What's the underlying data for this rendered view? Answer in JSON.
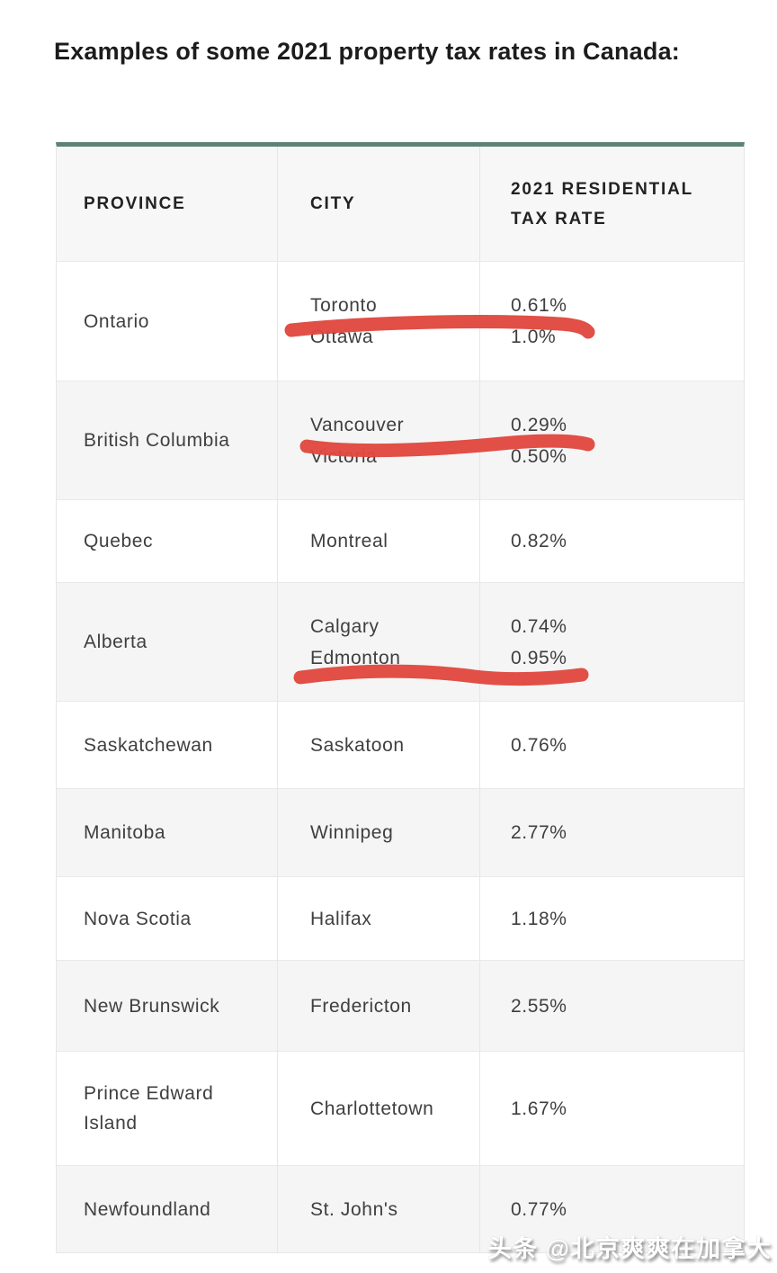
{
  "title": "Examples of some 2021 property tax rates in Canada:",
  "table": {
    "columns": [
      "PROVINCE",
      "CITY",
      "2021 RESIDENTIAL TAX RATE"
    ],
    "rows": [
      {
        "province": "Ontario",
        "cities": [
          "Toronto",
          "Ottawa"
        ],
        "rates": [
          "0.61%",
          "1.0%"
        ]
      },
      {
        "province": "British Columbia",
        "cities": [
          "Vancouver",
          "Victoria"
        ],
        "rates": [
          "0.29%",
          "0.50%"
        ]
      },
      {
        "province": "Quebec",
        "cities": [
          "Montreal"
        ],
        "rates": [
          "0.82%"
        ]
      },
      {
        "province": "Alberta",
        "cities": [
          "Calgary",
          "Edmonton"
        ],
        "rates": [
          "0.74%",
          "0.95%"
        ]
      },
      {
        "province": "Saskatchewan",
        "cities": [
          "Saskatoon"
        ],
        "rates": [
          "0.76%"
        ]
      },
      {
        "province": "Manitoba",
        "cities": [
          "Winnipeg"
        ],
        "rates": [
          "2.77%"
        ]
      },
      {
        "province": "Nova Scotia",
        "cities": [
          "Halifax"
        ],
        "rates": [
          "1.18%"
        ]
      },
      {
        "province": "New Brunswick",
        "cities": [
          "Fredericton"
        ],
        "rates": [
          "2.55%"
        ]
      },
      {
        "province": "Prince Edward Island",
        "cities": [
          "Charlottetown"
        ],
        "rates": [
          "1.67%"
        ]
      },
      {
        "province": "Newfoundland",
        "cities": [
          "St. John's"
        ],
        "rates": [
          "0.77%"
        ]
      }
    ]
  },
  "annotations": {
    "marker_color": "#e0483e",
    "marked_entries": [
      "Toronto 0.61%",
      "Vancouver 0.29%",
      "Edmonton 0.95%"
    ]
  },
  "colors": {
    "table_accent_border": "#5d8376",
    "row_alt_background": "#f5f5f5",
    "header_background": "#f7f7f7",
    "body_text": "#3f3f3f",
    "header_text": "#222222"
  },
  "watermark": "头条 @北京爽爽在加拿大"
}
